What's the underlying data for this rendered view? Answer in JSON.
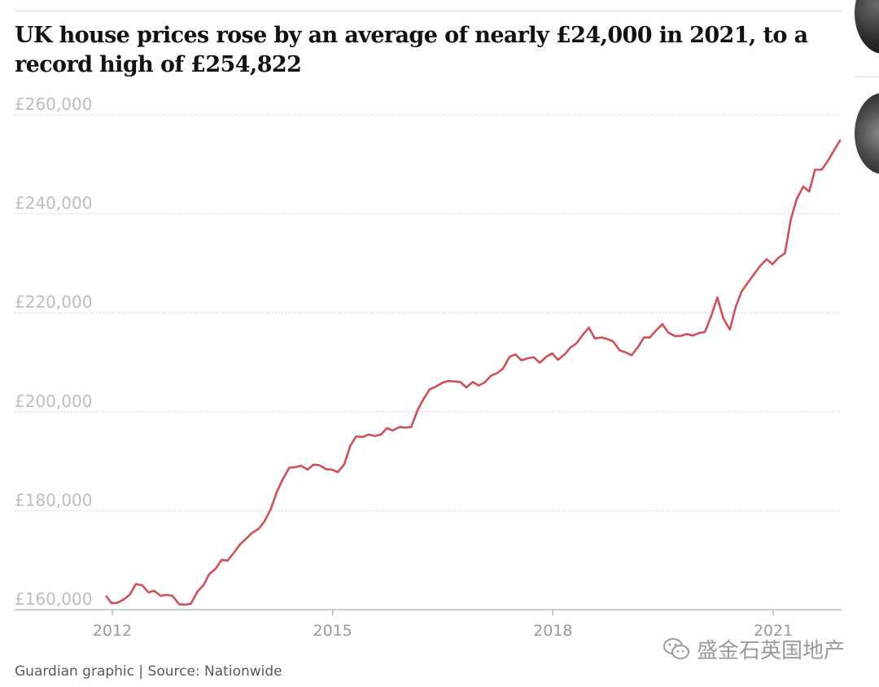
{
  "chart_data": {
    "type": "line",
    "title": "UK house prices rose by an average of nearly £24,000 in 2021, to a record high of £254,822",
    "ylim": [
      160000,
      260000
    ],
    "y_ticks": [
      {
        "value": 260000,
        "label": "£260,000"
      },
      {
        "value": 240000,
        "label": "£240,000"
      },
      {
        "value": 220000,
        "label": "£220,000"
      },
      {
        "value": 200000,
        "label": "£200,000"
      },
      {
        "value": 180000,
        "label": "£180,000"
      },
      {
        "value": 160000,
        "label": "£160,000"
      }
    ],
    "x_ticks": [
      {
        "value": 2012,
        "label": "2012"
      },
      {
        "value": 2015,
        "label": "2015"
      },
      {
        "value": 2018,
        "label": "2018"
      },
      {
        "value": 2021,
        "label": "2021"
      }
    ],
    "grid": true,
    "line_color": "#d0505a",
    "series": [
      {
        "points": [
          [
            2011.92,
            162700
          ],
          [
            2011.99,
            161300
          ],
          [
            2012.07,
            161400
          ],
          [
            2012.16,
            162100
          ],
          [
            2012.24,
            163100
          ],
          [
            2012.32,
            165200
          ],
          [
            2012.41,
            164900
          ],
          [
            2012.49,
            163500
          ],
          [
            2012.57,
            163800
          ],
          [
            2012.66,
            162800
          ],
          [
            2012.74,
            163000
          ],
          [
            2012.82,
            162800
          ],
          [
            2012.91,
            161100
          ],
          [
            2012.99,
            161000
          ],
          [
            2013.07,
            161200
          ],
          [
            2013.16,
            163700
          ],
          [
            2013.24,
            164900
          ],
          [
            2013.32,
            167200
          ],
          [
            2013.41,
            168300
          ],
          [
            2013.49,
            170100
          ],
          [
            2013.57,
            169900
          ],
          [
            2013.66,
            171600
          ],
          [
            2013.74,
            173200
          ],
          [
            2013.82,
            174300
          ],
          [
            2013.91,
            175600
          ],
          [
            2013.99,
            176300
          ],
          [
            2014.07,
            177800
          ],
          [
            2014.16,
            180400
          ],
          [
            2014.24,
            183800
          ],
          [
            2014.32,
            186300
          ],
          [
            2014.41,
            188700
          ],
          [
            2014.49,
            188800
          ],
          [
            2014.57,
            189100
          ],
          [
            2014.66,
            188300
          ],
          [
            2014.74,
            189300
          ],
          [
            2014.82,
            189200
          ],
          [
            2014.91,
            188400
          ],
          [
            2014.99,
            188300
          ],
          [
            2015.07,
            187800
          ],
          [
            2015.16,
            189400
          ],
          [
            2015.24,
            193100
          ],
          [
            2015.32,
            195000
          ],
          [
            2015.41,
            194900
          ],
          [
            2015.49,
            195400
          ],
          [
            2015.57,
            195100
          ],
          [
            2015.66,
            195400
          ],
          [
            2015.74,
            196700
          ],
          [
            2015.82,
            196200
          ],
          [
            2015.91,
            196900
          ],
          [
            2015.99,
            196800
          ],
          [
            2016.07,
            196900
          ],
          [
            2016.16,
            200400
          ],
          [
            2016.24,
            202600
          ],
          [
            2016.32,
            204500
          ],
          [
            2016.41,
            205100
          ],
          [
            2016.49,
            205800
          ],
          [
            2016.57,
            206200
          ],
          [
            2016.66,
            206100
          ],
          [
            2016.74,
            206000
          ],
          [
            2016.82,
            204900
          ],
          [
            2016.91,
            206000
          ],
          [
            2016.99,
            205300
          ],
          [
            2017.07,
            205900
          ],
          [
            2017.16,
            207300
          ],
          [
            2017.24,
            207800
          ],
          [
            2017.32,
            208700
          ],
          [
            2017.41,
            211100
          ],
          [
            2017.49,
            211600
          ],
          [
            2017.57,
            210400
          ],
          [
            2017.66,
            210800
          ],
          [
            2017.74,
            211000
          ],
          [
            2017.82,
            209900
          ],
          [
            2017.91,
            211100
          ],
          [
            2017.99,
            211800
          ],
          [
            2018.07,
            210500
          ],
          [
            2018.16,
            211600
          ],
          [
            2018.24,
            213000
          ],
          [
            2018.32,
            213800
          ],
          [
            2018.41,
            215600
          ],
          [
            2018.49,
            217000
          ],
          [
            2018.57,
            214800
          ],
          [
            2018.66,
            215000
          ],
          [
            2018.74,
            214700
          ],
          [
            2018.82,
            214200
          ],
          [
            2018.91,
            212400
          ],
          [
            2018.99,
            212000
          ],
          [
            2019.07,
            211400
          ],
          [
            2019.16,
            213100
          ],
          [
            2019.24,
            215000
          ],
          [
            2019.32,
            215000
          ],
          [
            2019.41,
            216500
          ],
          [
            2019.49,
            217700
          ],
          [
            2019.57,
            216000
          ],
          [
            2019.66,
            215300
          ],
          [
            2019.74,
            215300
          ],
          [
            2019.82,
            215700
          ],
          [
            2019.91,
            215400
          ],
          [
            2019.99,
            215900
          ],
          [
            2020.07,
            216100
          ],
          [
            2020.16,
            219500
          ],
          [
            2020.24,
            223100
          ],
          [
            2020.32,
            218900
          ],
          [
            2020.41,
            216600
          ],
          [
            2020.49,
            221200
          ],
          [
            2020.57,
            224300
          ],
          [
            2020.66,
            226200
          ],
          [
            2020.74,
            227800
          ],
          [
            2020.82,
            229400
          ],
          [
            2020.91,
            230800
          ],
          [
            2020.99,
            229800
          ],
          [
            2021.07,
            231100
          ],
          [
            2021.16,
            232000
          ],
          [
            2021.24,
            238900
          ],
          [
            2021.32,
            243000
          ],
          [
            2021.41,
            245500
          ],
          [
            2021.49,
            244500
          ],
          [
            2021.57,
            248900
          ],
          [
            2021.66,
            248900
          ],
          [
            2021.74,
            250600
          ],
          [
            2021.82,
            252600
          ],
          [
            2021.91,
            254822
          ]
        ]
      }
    ]
  },
  "source": "Guardian graphic | Source: Nationwide",
  "watermark": {
    "text": "盛金石英国地产",
    "icon": "wechat-icon"
  },
  "sidebar": {
    "thumbnails": [
      "article-thumbnail-icon",
      "article-thumbnail-icon"
    ]
  }
}
